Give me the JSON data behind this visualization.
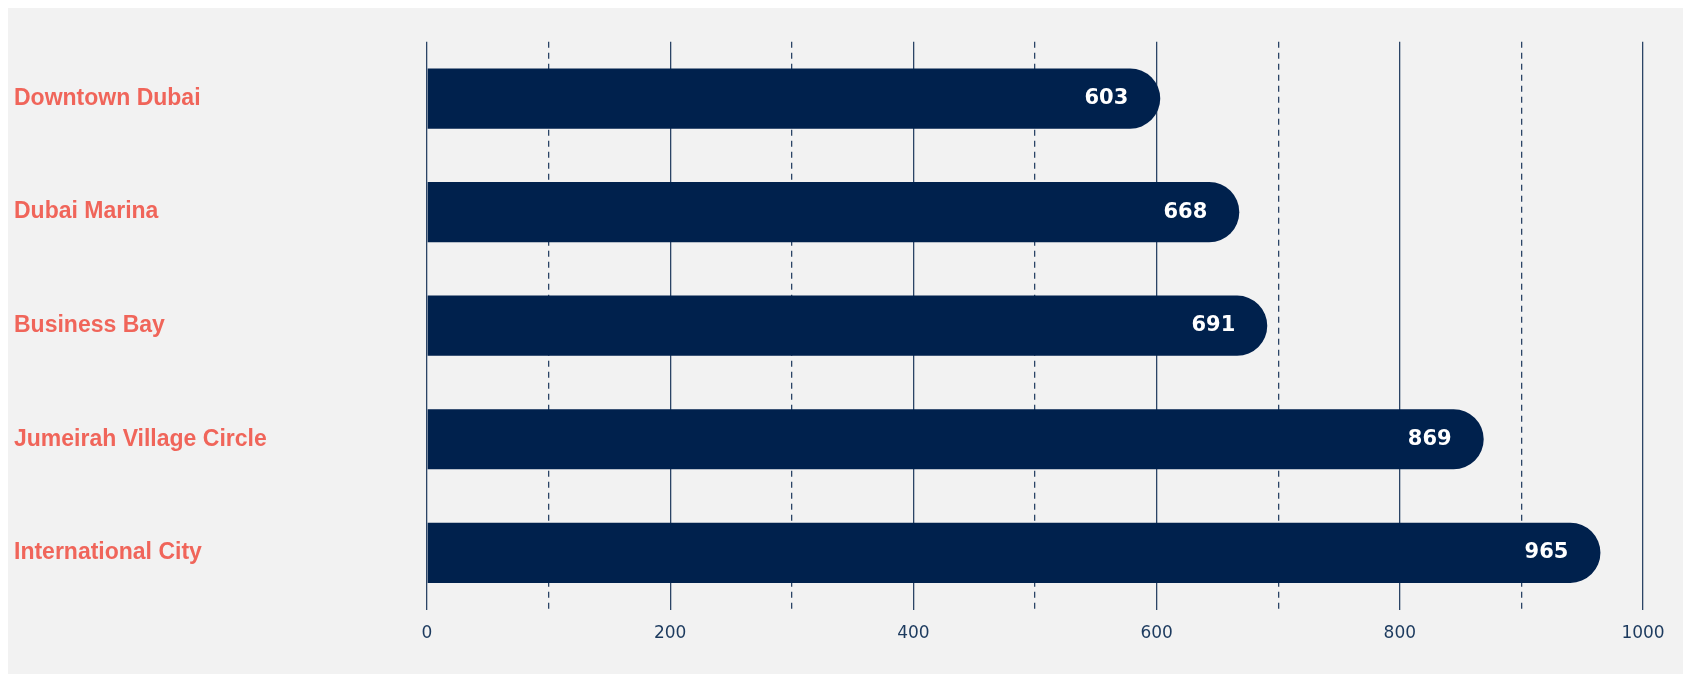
{
  "chart_data": {
    "type": "bar",
    "orientation": "horizontal",
    "categories": [
      "Downtown Dubai",
      "Dubai Marina",
      "Business Bay",
      "Jumeirah Village Circle",
      "International City"
    ],
    "values": [
      603,
      668,
      691,
      869,
      965
    ],
    "color": "#00214d",
    "xlim": [
      0,
      1000
    ],
    "xticks": [
      0,
      {
        "value": 100,
        "label": null
      },
      200,
      {
        "value": 300,
        "label": null
      },
      400,
      {
        "value": 500,
        "label": null
      },
      600,
      {
        "value": 700,
        "label": null
      },
      800,
      {
        "value": 900,
        "label": null
      },
      1000
    ],
    "grid": "x",
    "data_labels": true
  }
}
